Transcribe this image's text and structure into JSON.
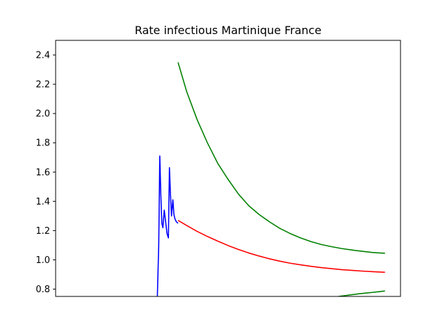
{
  "chart_data": {
    "type": "line",
    "title": "Rate infectious Martinique France",
    "xlabel": "",
    "ylabel": "",
    "ylim": [
      0.75,
      2.5
    ],
    "xlim": [
      0,
      100
    ],
    "grid": false,
    "yticks": [
      "0.8",
      "1.0",
      "1.2",
      "1.4",
      "1.6",
      "1.8",
      "2.0",
      "2.2",
      "2.4"
    ],
    "series": [
      {
        "color": "#0000ff",
        "x": [
          29.5,
          29.9,
          30.2,
          30.5,
          30.8,
          31.1,
          31.5,
          31.9,
          32.3,
          32.7,
          33.0,
          33.3,
          33.6,
          34.0,
          34.3,
          34.6,
          35.0,
          35.5
        ],
        "y": [
          0.75,
          1.1,
          1.71,
          1.45,
          1.25,
          1.22,
          1.34,
          1.26,
          1.18,
          1.15,
          1.63,
          1.45,
          1.3,
          1.41,
          1.31,
          1.28,
          1.26,
          1.25
        ]
      },
      {
        "color": "#ff0000",
        "x": [
          35.5,
          38,
          41,
          44,
          47,
          50,
          53,
          56,
          59,
          62,
          65,
          68,
          71,
          74,
          77,
          80,
          83,
          86,
          89,
          92,
          95.5
        ],
        "y": [
          1.27,
          1.235,
          1.195,
          1.16,
          1.128,
          1.098,
          1.071,
          1.047,
          1.026,
          1.007,
          0.991,
          0.977,
          0.966,
          0.956,
          0.947,
          0.94,
          0.933,
          0.928,
          0.923,
          0.919,
          0.915
        ]
      },
      {
        "color": "#008000",
        "x": [
          35.5,
          38,
          41,
          44,
          47,
          50,
          53,
          56,
          59,
          62,
          65,
          68,
          71,
          74,
          77,
          80,
          83,
          86,
          89,
          92,
          95.5
        ],
        "y": [
          2.35,
          2.15,
          1.96,
          1.8,
          1.66,
          1.55,
          1.45,
          1.37,
          1.31,
          1.26,
          1.215,
          1.18,
          1.15,
          1.125,
          1.105,
          1.09,
          1.077,
          1.067,
          1.058,
          1.05,
          1.045
        ]
      },
      {
        "color": "#008000",
        "x": [
          82,
          84,
          86,
          88,
          90,
          92,
          94,
          95.5
        ],
        "y": [
          0.75,
          0.756,
          0.762,
          0.768,
          0.773,
          0.778,
          0.783,
          0.787
        ]
      }
    ]
  }
}
